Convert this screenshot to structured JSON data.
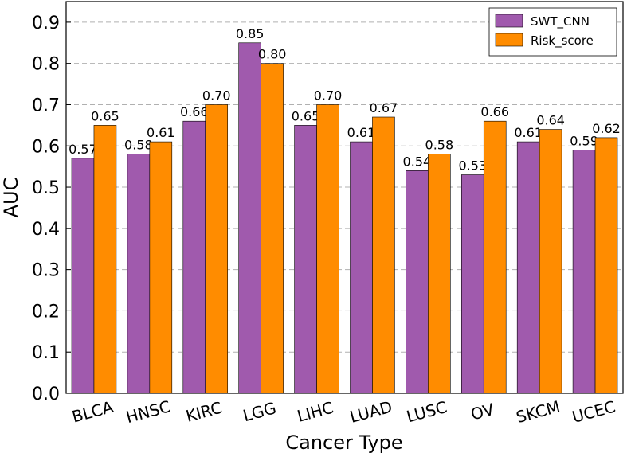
{
  "chart_data": {
    "type": "bar",
    "xlabel": "Cancer Type",
    "ylabel": "AUC",
    "categories": [
      "BLCA",
      "HNSC",
      "KIRC",
      "LGG",
      "LIHC",
      "LUAD",
      "LUSC",
      "OV",
      "SKCM",
      "UCEC"
    ],
    "series": [
      {
        "name": "SWT_CNN",
        "color": "#a05aad",
        "values": [
          0.57,
          0.58,
          0.66,
          0.85,
          0.65,
          0.61,
          0.54,
          0.53,
          0.61,
          0.59
        ],
        "value_labels": [
          "0.57",
          "0.58",
          "0.66",
          "0.85",
          "0.65",
          "0.61",
          "0.54",
          "0.53",
          "0.61",
          "0.59"
        ]
      },
      {
        "name": "Risk_score",
        "color": "#ff8c00",
        "values": [
          0.65,
          0.61,
          0.7,
          0.8,
          0.7,
          0.67,
          0.58,
          0.66,
          0.64,
          0.62
        ],
        "value_labels": [
          "0.65",
          "0.61",
          "0.70",
          "0.80",
          "0.70",
          "0.67",
          "0.58",
          "0.66",
          "0.64",
          "0.62"
        ]
      }
    ],
    "ylim": [
      0,
      0.95
    ],
    "yticks": [
      {
        "value": 0,
        "label": "0.0"
      },
      0.1,
      0.2,
      0.3,
      0.4,
      0.5,
      0.6,
      0.7,
      0.8,
      0.9
    ],
    "grid": true,
    "legend": "upper right"
  }
}
